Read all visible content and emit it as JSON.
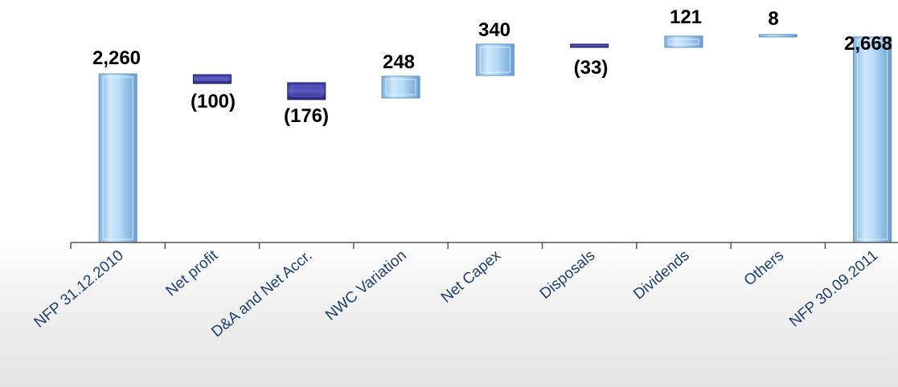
{
  "chart_data": {
    "type": "bar",
    "subtype": "waterfall",
    "title": "",
    "xlabel": "",
    "ylabel": "",
    "grid": false,
    "legend": "none",
    "categories": [
      "NFP 31.12.2010",
      "Net profit",
      "D&A and Net Accr.",
      "NWC Variation",
      "Net Capex",
      "Disposals",
      "Dividends",
      "Others",
      "NFP 30.09.2011"
    ],
    "values": [
      2260,
      -100,
      -176,
      248,
      340,
      -33,
      121,
      8,
      2668
    ],
    "labels": [
      "2,260",
      "(100)",
      "(176)",
      "248",
      "340",
      "(33)",
      "121",
      "8",
      "2,668"
    ],
    "kinds": [
      "total",
      "delta",
      "delta",
      "delta",
      "delta",
      "delta",
      "delta",
      "delta",
      "total"
    ],
    "colors": {
      "positive": "#a9d4f5",
      "negative": "#2e2e8f",
      "total": "#a9d4f5",
      "axis": "#555555",
      "label": "#1f3f6e"
    }
  }
}
